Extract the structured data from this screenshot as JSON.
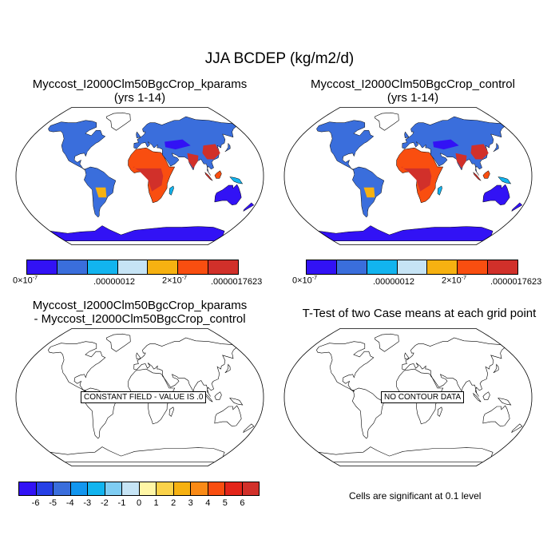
{
  "title": "JJA BCDEP (kg/m2/d)",
  "panels": {
    "p1": {
      "title_line1": "Myccost_I2000Clm50BgcCrop_kparams",
      "title_line2": "(yrs 1-14)"
    },
    "p2": {
      "title_line1": "Myccost_I2000Clm50BgcCrop_control",
      "title_line2": "(yrs 1-14)"
    },
    "p3": {
      "title_line1": "Myccost_I2000Clm50BgcCrop_kparams",
      "title_line2": "- Myccost_I2000Clm50BgcCrop_control",
      "message": "CONSTANT FIELD - VALUE IS .0"
    },
    "p4": {
      "title_line1": "T-Test of two Case means at each grid point",
      "message": "NO CONTOUR DATA",
      "note": "Cells are significant at 0.1 level"
    }
  },
  "colorbar_main": {
    "colors": [
      "#3212f5",
      "#3a6edc",
      "#12b4ef",
      "#c6e4f5",
      "#f6b111",
      "#f94e10",
      "#d1302a"
    ],
    "labels": [
      {
        "mantissa": "0",
        "times": "×10",
        "exp": "-7"
      },
      {
        "text": ".00000012"
      },
      {
        "mantissa": "2",
        "times": "×10",
        "exp": "-7"
      },
      {
        "text": ".0000017623"
      }
    ]
  },
  "colorbar_diff": {
    "colors": [
      "#3212f5",
      "#2640e6",
      "#3a6edc",
      "#1296ef",
      "#12b4ef",
      "#7fcdf3",
      "#c6e4f5",
      "#fff6a6",
      "#fad24a",
      "#f6b111",
      "#f98a16",
      "#f94e10",
      "#e3251a",
      "#d1302a"
    ],
    "labels": [
      "-6",
      "-5",
      "-4",
      "-3",
      "-2",
      "-1",
      "0",
      "1",
      "2",
      "3",
      "4",
      "5",
      "6"
    ]
  }
}
